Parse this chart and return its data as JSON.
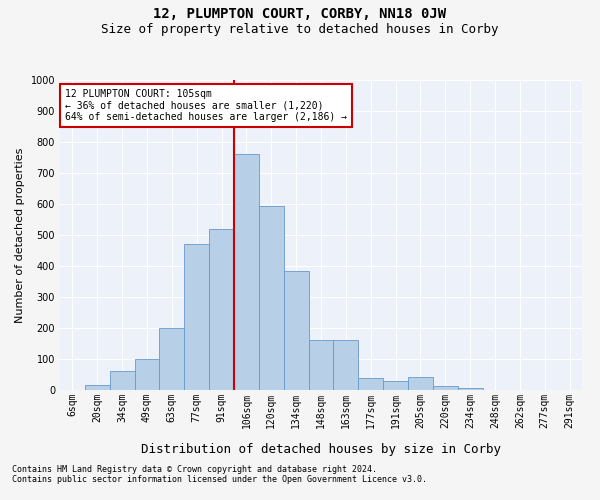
{
  "title": "12, PLUMPTON COURT, CORBY, NN18 0JW",
  "subtitle": "Size of property relative to detached houses in Corby",
  "xlabel": "Distribution of detached houses by size in Corby",
  "ylabel": "Number of detached properties",
  "categories": [
    "6sqm",
    "20sqm",
    "34sqm",
    "49sqm",
    "63sqm",
    "77sqm",
    "91sqm",
    "106sqm",
    "120sqm",
    "134sqm",
    "148sqm",
    "163sqm",
    "177sqm",
    "191sqm",
    "205sqm",
    "220sqm",
    "234sqm",
    "248sqm",
    "262sqm",
    "277sqm",
    "291sqm"
  ],
  "values": [
    0,
    15,
    60,
    100,
    200,
    470,
    520,
    760,
    595,
    385,
    160,
    160,
    40,
    28,
    42,
    12,
    7,
    0,
    0,
    0,
    0
  ],
  "bar_color": "#b8cfe8",
  "bar_edge_color": "#6699cc",
  "vline_color": "#cc0000",
  "annotation_line1": "12 PLUMPTON COURT: 105sqm",
  "annotation_line2": "← 36% of detached houses are smaller (1,220)",
  "annotation_line3": "64% of semi-detached houses are larger (2,186) →",
  "annotation_box_color": "#ffffff",
  "annotation_box_edge_color": "#cc0000",
  "footnote1": "Contains HM Land Registry data © Crown copyright and database right 2024.",
  "footnote2": "Contains public sector information licensed under the Open Government Licence v3.0.",
  "ylim": [
    0,
    1000
  ],
  "yticks": [
    0,
    100,
    200,
    300,
    400,
    500,
    600,
    700,
    800,
    900,
    1000
  ],
  "bg_color": "#edf1f9",
  "fig_bg_color": "#f5f5f5",
  "grid_color": "#ffffff",
  "title_fontsize": 10,
  "subtitle_fontsize": 9,
  "xlabel_fontsize": 9,
  "ylabel_fontsize": 8,
  "tick_fontsize": 7,
  "annot_fontsize": 7,
  "footnote_fontsize": 6
}
